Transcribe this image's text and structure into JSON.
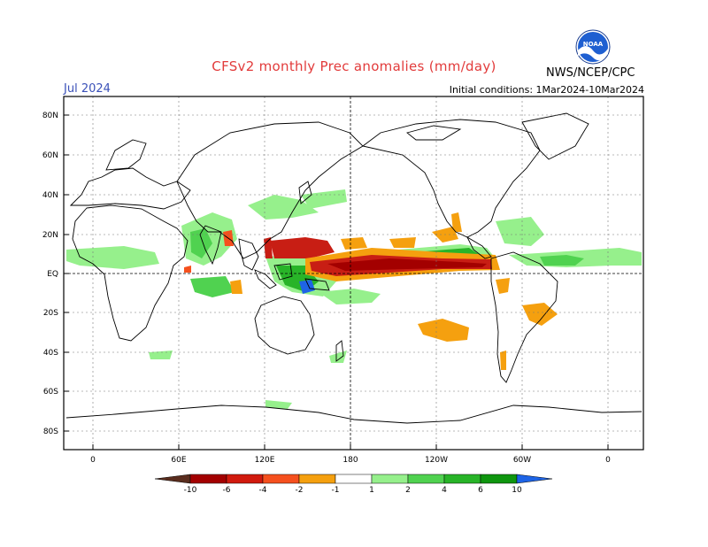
{
  "header": {
    "title": "CFSv2 monthly Prec anomalies (mm/day)",
    "month": "Jul 2024",
    "initial_conditions": "Initial conditions: 1Mar2024-10Mar2024",
    "agency": "NWS/NCEP/CPC",
    "logo_text": "NOAA"
  },
  "axes": {
    "lat_labels": [
      "80N",
      "60N",
      "40N",
      "20N",
      "EQ",
      "20S",
      "40S",
      "60S",
      "80S"
    ],
    "lon_labels": [
      "0",
      "60E",
      "120E",
      "180",
      "120W",
      "60W",
      "0"
    ]
  },
  "colorbar": {
    "labels": [
      "-10",
      "-6",
      "-4",
      "-2",
      "-1",
      "1",
      "2",
      "4",
      "6",
      "10"
    ],
    "colors": [
      "#5a2d1e",
      "#a30000",
      "#d11a0e",
      "#f5501e",
      "#f5a00f",
      "#ffffff",
      "#96f08c",
      "#50d250",
      "#28b428",
      "#0f960f",
      "#1e64e6"
    ]
  },
  "legend_colors": {
    "dry_extreme": "#a30000",
    "dry_strong": "#c81e14",
    "dry_mod": "#f5501e",
    "dry_weak": "#f5a00f",
    "wet_weak": "#96f08c",
    "wet_mod": "#50d250",
    "wet_strong": "#28b428",
    "wet_extreme": "#1e64e6"
  }
}
